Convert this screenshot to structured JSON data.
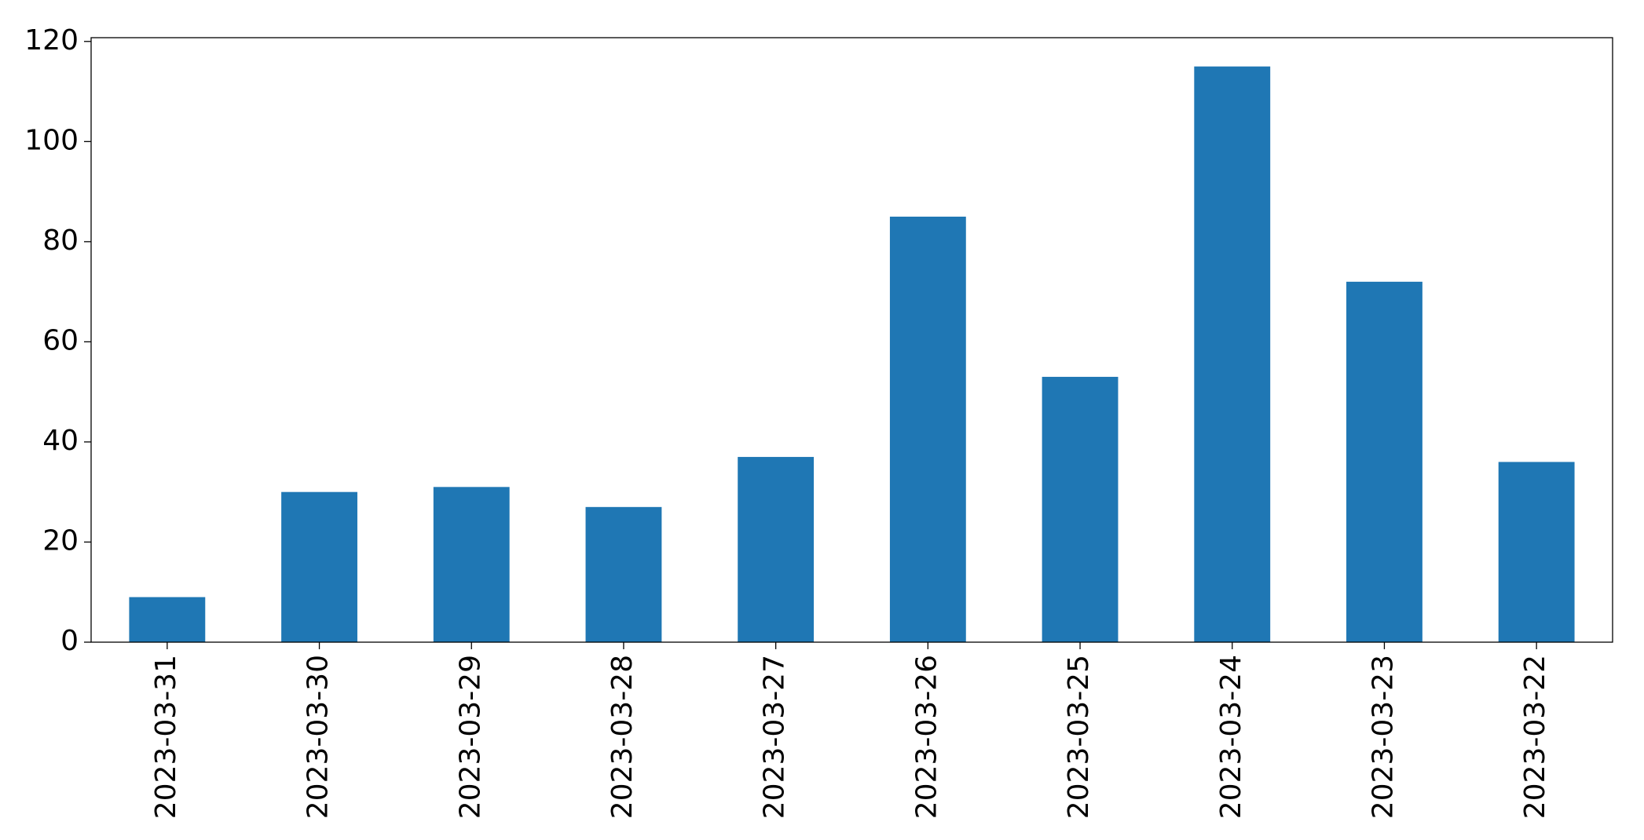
{
  "chart_data": {
    "type": "bar",
    "categories": [
      "2023-03-31",
      "2023-03-30",
      "2023-03-29",
      "2023-03-28",
      "2023-03-27",
      "2023-03-26",
      "2023-03-25",
      "2023-03-24",
      "2023-03-23",
      "2023-03-22"
    ],
    "values": [
      9,
      30,
      31,
      27,
      37,
      85,
      53,
      115,
      72,
      36
    ],
    "color": "#1f77b4",
    "ylim": [
      0,
      120.75
    ],
    "yticks": [
      0,
      20,
      40,
      60,
      80,
      100,
      120
    ],
    "grid": false
  }
}
